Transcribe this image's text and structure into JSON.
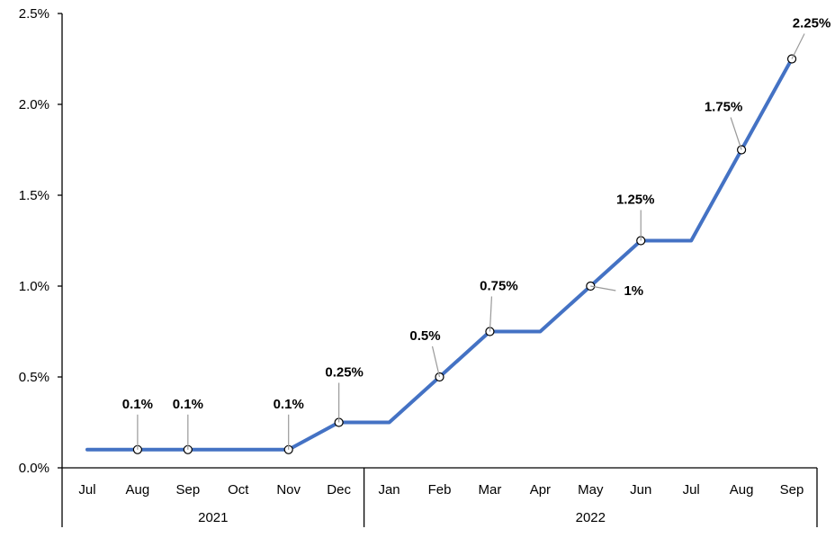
{
  "chart_data": {
    "type": "line",
    "title": "",
    "xlabel": "",
    "ylabel": "",
    "categories": [
      "Jul",
      "Aug",
      "Sep",
      "Oct",
      "Nov",
      "Dec",
      "Jan",
      "Feb",
      "Mar",
      "Apr",
      "May",
      "Jun",
      "Jul",
      "Aug",
      "Sep"
    ],
    "groups": [
      {
        "label": "2021",
        "start": 0,
        "end": 5
      },
      {
        "label": "2022",
        "start": 6,
        "end": 14
      }
    ],
    "series": [
      {
        "values": [
          0.1,
          0.1,
          0.1,
          0.1,
          0.1,
          0.25,
          0.25,
          0.5,
          0.75,
          0.75,
          1.0,
          1.25,
          1.25,
          1.75,
          2.25
        ],
        "color": "#4472C4"
      }
    ],
    "data_labels": [
      {
        "index": 1,
        "text": "0.1%"
      },
      {
        "index": 2,
        "text": "0.1%"
      },
      {
        "index": 4,
        "text": "0.1%"
      },
      {
        "index": 5,
        "text": "0.25%"
      },
      {
        "index": 7,
        "text": "0.5%"
      },
      {
        "index": 8,
        "text": "0.75%"
      },
      {
        "index": 10,
        "text": "1%"
      },
      {
        "index": 11,
        "text": "1.25%"
      },
      {
        "index": 13,
        "text": "1.75%"
      },
      {
        "index": 14,
        "text": "2.25%"
      }
    ],
    "y_ticks": [
      "0.0%",
      "0.5%",
      "1.0%",
      "1.5%",
      "2.0%",
      "2.5%"
    ],
    "ylim": [
      0,
      2.5
    ],
    "grid": false,
    "legend": "none"
  }
}
